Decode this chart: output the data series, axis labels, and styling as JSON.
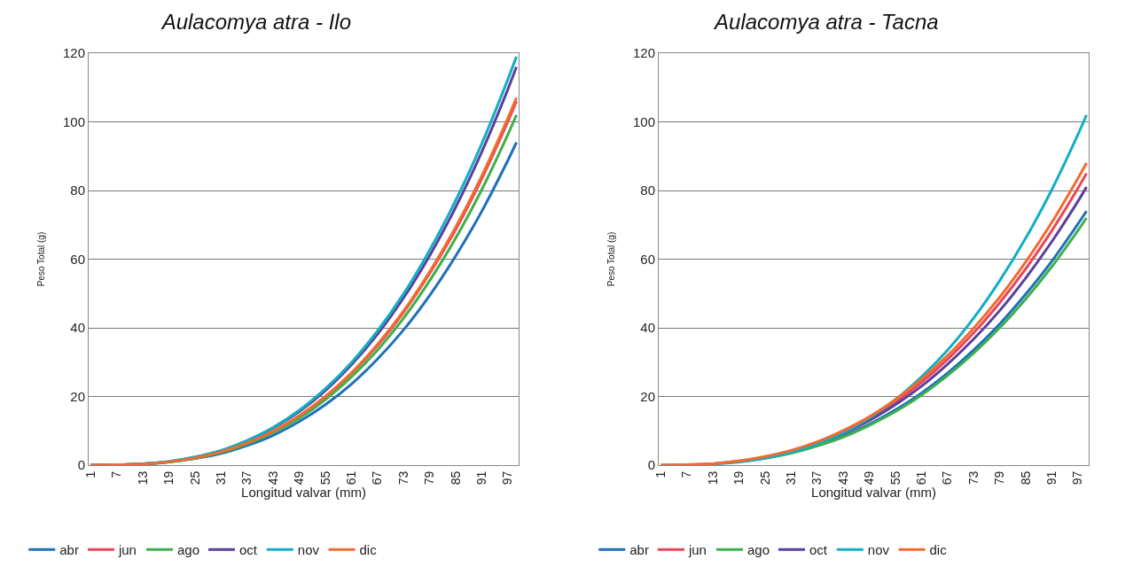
{
  "chart_data": [
    {
      "type": "line",
      "title": "Aulacomya atra - Ilo",
      "xlabel": "Longitud valvar (mm)",
      "ylabel": "Peso Total (g)",
      "x": [
        1,
        7,
        13,
        19,
        25,
        31,
        37,
        43,
        49,
        55,
        61,
        67,
        73,
        79,
        85,
        91,
        97,
        99
      ],
      "xlim": [
        0.5,
        99.5
      ],
      "xticks": [
        1,
        7,
        13,
        19,
        25,
        31,
        37,
        43,
        49,
        55,
        61,
        67,
        73,
        79,
        85,
        91,
        97
      ],
      "ylim": [
        0,
        120
      ],
      "yticks": [
        0,
        20,
        40,
        60,
        80,
        100,
        120
      ],
      "grid": "y",
      "legend": "bottom",
      "series": [
        {
          "name": "abr",
          "color": "#1f6fba",
          "values": [
            0,
            0.1,
            0.3,
            0.9,
            1.9,
            3.4,
            5.7,
            8.7,
            12.7,
            17.6,
            23.6,
            30.9,
            39.4,
            49.4,
            60.9,
            73.9,
            88.7,
            94
          ]
        },
        {
          "name": "jun",
          "color": "#e8445a",
          "values": [
            0,
            0.1,
            0.3,
            1.0,
            2.1,
            3.9,
            6.4,
            9.8,
            14.3,
            19.9,
            26.7,
            34.8,
            44.5,
            55.8,
            68.6,
            83.4,
            100.0,
            106
          ]
        },
        {
          "name": "ago",
          "color": "#3cb04a",
          "values": [
            null,
            null,
            0.3,
            0.9,
            2.0,
            3.7,
            6.2,
            9.5,
            13.7,
            19.1,
            25.7,
            33.5,
            42.8,
            53.7,
            66.1,
            80.2,
            96.2,
            102
          ]
        },
        {
          "name": "oct",
          "color": "#5b3f9b",
          "values": [
            0,
            0.1,
            0.4,
            1.0,
            2.3,
            4.2,
            7.0,
            10.8,
            15.6,
            21.7,
            29.2,
            38.1,
            48.7,
            61.0,
            75.1,
            91.2,
            109.4,
            116
          ]
        },
        {
          "name": "nov",
          "color": "#13aec4",
          "values": [
            0,
            0.1,
            0.4,
            1.1,
            2.4,
            4.3,
            7.2,
            11.0,
            16.0,
            22.3,
            29.9,
            39.1,
            49.9,
            62.6,
            77.1,
            93.6,
            112.3,
            119
          ]
        },
        {
          "name": "dic",
          "color": "#f26a2e",
          "values": [
            0,
            0.1,
            0.3,
            1.0,
            2.1,
            3.9,
            6.5,
            9.9,
            14.4,
            20.0,
            26.9,
            35.2,
            44.9,
            56.3,
            69.3,
            84.2,
            101.0,
            107
          ]
        }
      ]
    },
    {
      "type": "line",
      "title": "Aulacomya atra - Tacna",
      "xlabel": "Longitud valvar (mm)",
      "ylabel": "Peso Total (g)",
      "x": [
        1,
        7,
        13,
        19,
        25,
        31,
        37,
        43,
        49,
        55,
        61,
        67,
        73,
        79,
        85,
        91,
        97,
        99
      ],
      "xlim": [
        0.5,
        99.5
      ],
      "xticks": [
        1,
        7,
        13,
        19,
        25,
        31,
        37,
        43,
        49,
        55,
        61,
        67,
        73,
        79,
        85,
        91,
        97
      ],
      "ylim": [
        0,
        120
      ],
      "yticks": [
        0,
        20,
        40,
        60,
        80,
        100,
        120
      ],
      "grid": "y",
      "legend": "bottom",
      "series": [
        {
          "name": "abr",
          "color": "#1f6fba",
          "values": [
            null,
            null,
            0.4,
            1.0,
            2.1,
            3.6,
            5.7,
            8.5,
            11.9,
            16.1,
            21.0,
            26.8,
            33.5,
            41.1,
            49.8,
            59.4,
            70.2,
            74
          ]
        },
        {
          "name": "jun",
          "color": "#e8445a",
          "values": [
            0,
            0.1,
            0.4,
            1.2,
            2.4,
            4.2,
            6.6,
            9.7,
            13.7,
            18.4,
            24.1,
            30.8,
            38.5,
            47.3,
            57.2,
            68.3,
            80.6,
            85
          ]
        },
        {
          "name": "ago",
          "color": "#3cb04a",
          "values": [
            null,
            null,
            null,
            1.0,
            2.0,
            3.5,
            5.6,
            8.2,
            11.6,
            15.6,
            20.4,
            26.1,
            32.6,
            40.0,
            48.4,
            57.8,
            68.3,
            72
          ]
        },
        {
          "name": "oct",
          "color": "#5b3f9b",
          "values": [
            null,
            null,
            null,
            null,
            null,
            null,
            6.3,
            9.3,
            13.0,
            17.6,
            23.0,
            29.4,
            36.7,
            45.0,
            54.5,
            65.1,
            76.8,
            81
          ]
        },
        {
          "name": "nov",
          "color": "#13aec4",
          "values": [
            0,
            0.1,
            0.3,
            0.9,
            2.0,
            3.7,
            6.2,
            9.5,
            13.7,
            19.1,
            25.7,
            33.5,
            42.8,
            53.7,
            66.1,
            80.2,
            96.2,
            102
          ]
        },
        {
          "name": "dic",
          "color": "#f26a2e",
          "values": [
            0,
            0.1,
            0.4,
            1.2,
            2.5,
            4.3,
            6.8,
            10.1,
            14.1,
            19.1,
            25.0,
            31.9,
            39.9,
            48.9,
            59.2,
            70.7,
            83.5,
            88
          ]
        }
      ]
    }
  ]
}
